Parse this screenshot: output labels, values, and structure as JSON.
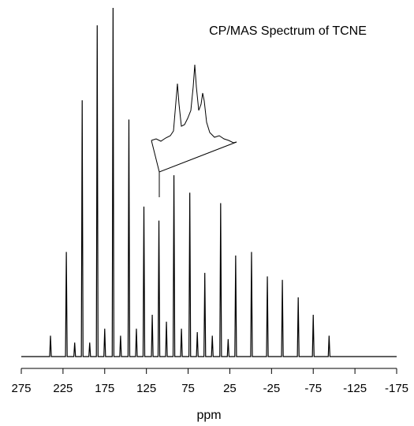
{
  "chart_data": {
    "type": "line",
    "title": "CP/MAS Spectrum of TCNE",
    "x_label": "ppm",
    "xlim": [
      275,
      -175
    ],
    "xticks": [
      275,
      225,
      175,
      125,
      75,
      25,
      -25,
      -75,
      -125,
      -175
    ],
    "ylim": [
      0,
      100
    ],
    "x": [
      275,
      241,
      240,
      239,
      222,
      221,
      220,
      212,
      211,
      210,
      203,
      202,
      201,
      194,
      193,
      192,
      185,
      184,
      183,
      176,
      175,
      174,
      166,
      165,
      164,
      157,
      156,
      155,
      147,
      146,
      145,
      138,
      137,
      136,
      129,
      128,
      127,
      119,
      118,
      117,
      111,
      110,
      109,
      102,
      101,
      100,
      93,
      92,
      91,
      84,
      83,
      82,
      74,
      73,
      72,
      65,
      64,
      63,
      56,
      55,
      54,
      47,
      46,
      45,
      37,
      36,
      35,
      28,
      27,
      26,
      19,
      18,
      17,
      0,
      -1,
      -2,
      -19,
      -20,
      -21,
      -37,
      -38,
      -39,
      -56,
      -57,
      -58,
      -74,
      -75,
      -76,
      -93,
      -94,
      -95,
      -175
    ],
    "series": [
      {
        "color": "#000000",
        "values": [
          0,
          0,
          6,
          0,
          0,
          30,
          0,
          0,
          4,
          0,
          0,
          73.5,
          0,
          0,
          4,
          0,
          0,
          95,
          0,
          0,
          8,
          0,
          0,
          100,
          0,
          0,
          6,
          0,
          0,
          68,
          0,
          0,
          8,
          0,
          0,
          43,
          0,
          0,
          12,
          0,
          0,
          39,
          0,
          0,
          10,
          0,
          0,
          52,
          0,
          0,
          8,
          0,
          0,
          47,
          0,
          0,
          7,
          0,
          0,
          24,
          0,
          0,
          6,
          0,
          0,
          44,
          0,
          0,
          5,
          0,
          0,
          29,
          0,
          0,
          30,
          0,
          0,
          23,
          0,
          0,
          22,
          0,
          0,
          17,
          0,
          0,
          12,
          0,
          0,
          6,
          0,
          0
        ]
      }
    ]
  }
}
